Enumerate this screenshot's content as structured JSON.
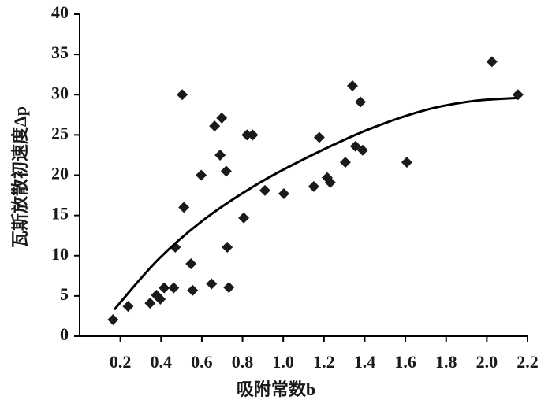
{
  "chart_data": {
    "type": "scatter",
    "xlabel": "吸附常数b",
    "ylabel": "瓦斯放散初速度Δp",
    "xlim": [
      0,
      2.2
    ],
    "xticks": [
      0.2,
      0.4,
      0.6,
      0.8,
      {
        "value": 1.0,
        "label": "1.0"
      },
      1.2,
      1.4,
      1.6,
      1.8,
      {
        "value": 2.0,
        "label": "2.0"
      },
      2.2
    ],
    "ylim": [
      0,
      40
    ],
    "yticks": [
      0,
      5,
      10,
      15,
      20,
      25,
      30,
      35,
      40
    ],
    "series": [
      {
        "type": "scatter",
        "color": "#1a1a1a",
        "x": [
          0.164,
          0.238,
          0.346,
          0.377,
          0.396,
          0.415,
          0.462,
          0.47,
          0.504,
          0.512,
          0.547,
          0.555,
          0.597,
          0.648,
          0.663,
          0.69,
          0.698,
          0.72,
          0.725,
          0.733,
          0.806,
          0.822,
          0.85,
          0.91,
          1.003,
          1.15,
          1.177,
          1.216,
          1.231,
          1.305,
          1.34,
          1.355,
          1.379,
          1.39,
          1.607,
          2.025,
          2.153
        ],
        "values": [
          2.05,
          3.7,
          4.1,
          5.1,
          4.6,
          6.0,
          6.0,
          11.05,
          30.0,
          16.0,
          9.0,
          5.7,
          20.0,
          6.5,
          26.1,
          22.5,
          27.1,
          20.5,
          11.05,
          6.05,
          14.7,
          25.0,
          25.0,
          18.1,
          17.7,
          18.6,
          24.7,
          19.7,
          19.1,
          21.6,
          31.1,
          23.6,
          29.1,
          23.1,
          21.6,
          34.1,
          30.0
        ]
      },
      {
        "type": "line",
        "color": "#000000",
        "x": [
          0.17,
          0.385,
          0.617,
          0.887,
          1.158,
          1.43,
          1.7,
          1.93,
          2.15
        ],
        "values": [
          3.3,
          9.5,
          14.6,
          19.1,
          22.7,
          25.8,
          28.1,
          29.2,
          29.6
        ]
      }
    ]
  }
}
